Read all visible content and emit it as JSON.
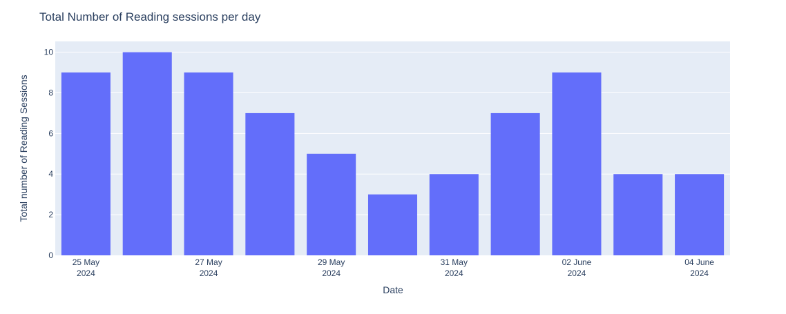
{
  "chart_data": {
    "type": "bar",
    "title": "Total Number of Reading sessions per day",
    "xlabel": "Date",
    "ylabel": "Total number of Reading Sessions",
    "x": [
      "2024-05-25",
      "2024-05-26",
      "2024-05-27",
      "2024-05-28",
      "2024-05-29",
      "2024-05-30",
      "2024-05-31",
      "2024-06-01",
      "2024-06-02",
      "2024-06-03",
      "2024-06-04"
    ],
    "values": [
      9,
      10,
      9,
      7,
      5,
      3,
      4,
      7,
      9,
      4,
      4
    ],
    "x_tick_labels": [
      {
        "date": "2024-05-25",
        "line1": "25 May",
        "line2": "2024"
      },
      {
        "date": "2024-05-27",
        "line1": "27 May",
        "line2": "2024"
      },
      {
        "date": "2024-05-29",
        "line1": "29 May",
        "line2": "2024"
      },
      {
        "date": "2024-05-31",
        "line1": "31 May",
        "line2": "2024"
      },
      {
        "date": "2024-06-02",
        "line1": "02 June",
        "line2": "2024"
      },
      {
        "date": "2024-06-04",
        "line1": "04 June",
        "line2": "2024"
      }
    ],
    "y_ticks": [
      0,
      2,
      4,
      6,
      8,
      10
    ],
    "ylim": [
      0,
      10.53
    ],
    "grid": true,
    "colors": {
      "bar": "#636efa",
      "plot_background": "#e5ecf6",
      "grid": "#ffffff",
      "text": "#2a3f5f"
    }
  }
}
